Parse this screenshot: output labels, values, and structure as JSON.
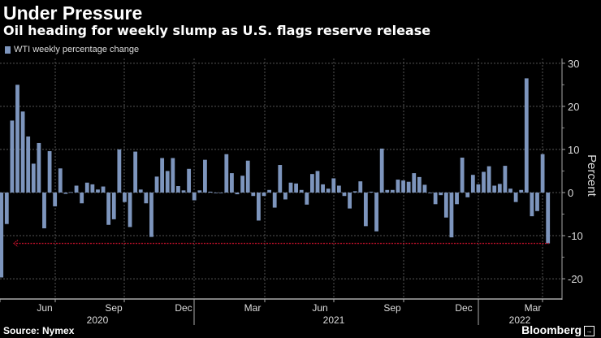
{
  "header": {
    "title": "Under Pressure",
    "subtitle": "Oil heading for weekly slump as U.S. flags reserve release"
  },
  "footer": {
    "source": "Source: Nymex",
    "brand": "Bloomberg"
  },
  "colors": {
    "bar": "#7d95bd",
    "reference_line": "#c0102a",
    "grid": "#555555"
  },
  "chart_data": {
    "type": "bar",
    "title": "Under Pressure",
    "legend": [
      "WTI weekly percentage change"
    ],
    "legend_placement": "top-left",
    "xlabel": "",
    "ylabel": "Percent",
    "ylim": [
      -24.7,
      31.1
    ],
    "yticks": [
      30,
      20,
      10,
      0,
      -10,
      -20
    ],
    "x_month_ticks": [
      "Jun",
      "Sep",
      "Dec",
      "Mar",
      "Jun",
      "Sep",
      "Dec",
      "Mar"
    ],
    "x_year_ticks": [
      "2020",
      "2021",
      "2022"
    ],
    "grid": true,
    "reference_line": {
      "value": -11.8,
      "style": "dashed-arrow-left"
    },
    "series": [
      {
        "name": "WTI weekly percentage change",
        "values": [
          -19.7,
          -7.3,
          16.7,
          25,
          18.8,
          13,
          6.7,
          11.5,
          -8.3,
          9.6,
          -3.2,
          5.6,
          -0.3,
          0.1,
          1.6,
          -2.5,
          2.3,
          1.9,
          0.7,
          1.4,
          -7.5,
          -6.2,
          10,
          -2.2,
          -8,
          9.5,
          0.7,
          -2.5,
          -10.3,
          3.7,
          8,
          5,
          8,
          1.5,
          0.5,
          5.5,
          -1.8,
          0.5,
          7.6,
          0.2,
          -0.1,
          -0.1,
          8.9,
          4.5,
          -0.4,
          3.9,
          7.4,
          -0.8,
          -6.5,
          -0.8,
          0.6,
          -3.5,
          6.4,
          -1.6,
          2.3,
          2.1,
          0.6,
          -2.8,
          4.3,
          5,
          1.9,
          0.9,
          3.3,
          1.6,
          -0.8,
          -3.7,
          0.3,
          2.6,
          -7.8,
          0.2,
          -9,
          10.2,
          0.6,
          0.6,
          3,
          2.8,
          2.5,
          4.5,
          3.6,
          1.8,
          -0.1,
          -2.7,
          -0.6,
          -5.8,
          -10.4,
          -2.7,
          8.1,
          -1.1,
          4.1,
          1.9,
          4.8,
          6.1,
          1.6,
          2,
          6.2,
          0.9,
          -2.2,
          0.6,
          26.5,
          -5.5,
          -4.3,
          8.9,
          -11.8
        ]
      }
    ]
  }
}
